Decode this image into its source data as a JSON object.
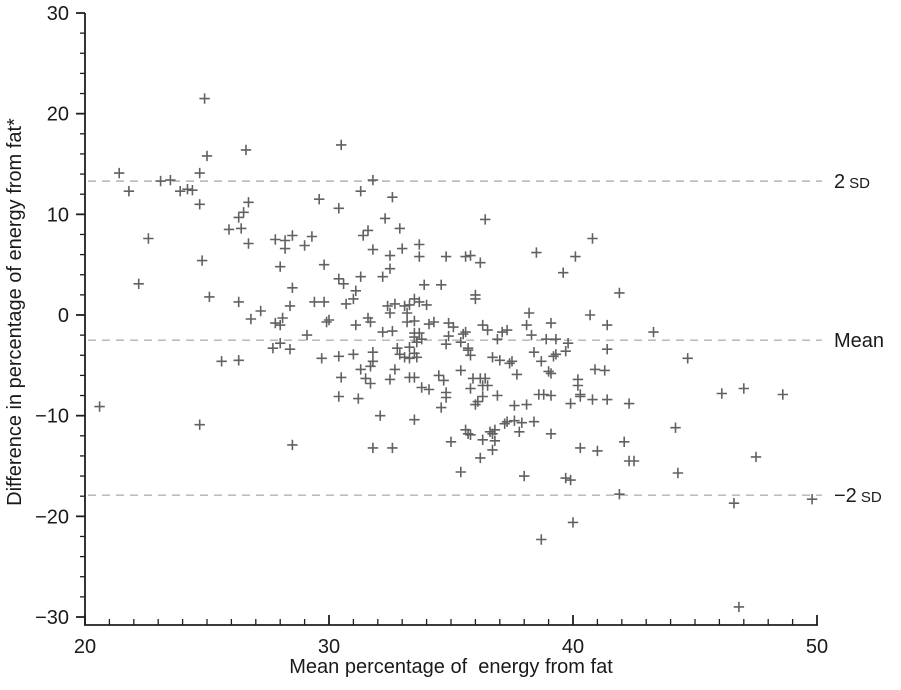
{
  "chart_data": {
    "type": "scatter",
    "marker": "plus",
    "title": "",
    "xlabel": "Mean percentage of  energy from fat",
    "ylabel": "Difference in percentage of energy from fat*",
    "xlim": [
      20,
      50
    ],
    "ylim": [
      -30,
      30
    ],
    "x_major_ticks": [
      20,
      30,
      40,
      50
    ],
    "x_tick_labels": [
      "20",
      "30",
      "40",
      "50"
    ],
    "x_minor_step": 1,
    "y_major_ticks": [
      -30,
      -20,
      -10,
      0,
      10,
      20,
      30
    ],
    "y_tick_labels": [
      "−30",
      "−20",
      "−10",
      "0",
      "10",
      "20",
      "30"
    ],
    "y_minor_step": 2,
    "grid": false,
    "legend": "none",
    "reference_lines": [
      {
        "id": "plus-2sd",
        "main": "2",
        "small": "SD",
        "value": 13.3
      },
      {
        "id": "mean",
        "main": "Mean",
        "small": "",
        "value": -2.5
      },
      {
        "id": "minus-2sd",
        "main": "−2",
        "small": "SD",
        "value": -17.9
      }
    ],
    "points": [
      [
        24.9,
        21.5
      ],
      [
        25.0,
        15.8
      ],
      [
        26.6,
        16.4
      ],
      [
        30.5,
        16.9
      ],
      [
        21.4,
        14.1
      ],
      [
        24.7,
        14.1
      ],
      [
        23.5,
        13.4
      ],
      [
        31.8,
        13.4
      ],
      [
        23.1,
        13.3
      ],
      [
        21.8,
        12.3
      ],
      [
        23.9,
        12.3
      ],
      [
        31.3,
        12.3
      ],
      [
        24.2,
        12.5
      ],
      [
        24.4,
        12.4
      ],
      [
        32.6,
        11.7
      ],
      [
        29.6,
        11.5
      ],
      [
        26.7,
        11.2
      ],
      [
        24.7,
        11.0
      ],
      [
        30.4,
        10.6
      ],
      [
        26.5,
        10.2
      ],
      [
        26.3,
        9.7
      ],
      [
        32.3,
        9.6
      ],
      [
        36.4,
        9.5
      ],
      [
        26.4,
        8.6
      ],
      [
        32.9,
        8.6
      ],
      [
        25.9,
        8.5
      ],
      [
        31.6,
        8.4
      ],
      [
        28.5,
        7.9
      ],
      [
        31.4,
        7.9
      ],
      [
        29.3,
        7.8
      ],
      [
        22.6,
        7.6
      ],
      [
        40.8,
        7.6
      ],
      [
        27.8,
        7.5
      ],
      [
        28.2,
        7.4
      ],
      [
        26.7,
        7.1
      ],
      [
        33.7,
        7.0
      ],
      [
        29.0,
        6.9
      ],
      [
        28.2,
        6.6
      ],
      [
        33.0,
        6.6
      ],
      [
        31.8,
        6.5
      ],
      [
        38.5,
        6.2
      ],
      [
        32.5,
        5.9
      ],
      [
        35.8,
        5.9
      ],
      [
        33.7,
        5.8
      ],
      [
        34.8,
        5.8
      ],
      [
        35.6,
        5.8
      ],
      [
        40.1,
        5.8
      ],
      [
        24.8,
        5.4
      ],
      [
        36.2,
        5.2
      ],
      [
        29.8,
        5.0
      ],
      [
        28.0,
        4.8
      ],
      [
        32.5,
        4.6
      ],
      [
        39.6,
        4.2
      ],
      [
        31.3,
        3.8
      ],
      [
        32.2,
        3.8
      ],
      [
        30.4,
        3.6
      ],
      [
        22.2,
        3.1
      ],
      [
        30.6,
        3.1
      ],
      [
        33.9,
        3.0
      ],
      [
        34.6,
        3.0
      ],
      [
        28.5,
        2.7
      ],
      [
        31.1,
        2.4
      ],
      [
        41.9,
        2.2
      ],
      [
        36.0,
        2.0
      ],
      [
        25.1,
        1.8
      ],
      [
        31.0,
        1.6
      ],
      [
        33.5,
        1.6
      ],
      [
        36.0,
        1.6
      ],
      [
        26.3,
        1.3
      ],
      [
        29.4,
        1.3
      ],
      [
        29.8,
        1.3
      ],
      [
        33.7,
        1.3
      ],
      [
        30.7,
        1.1
      ],
      [
        32.7,
        1.1
      ],
      [
        33.3,
        1.0
      ],
      [
        34.0,
        1.0
      ],
      [
        28.4,
        0.9
      ],
      [
        32.4,
        0.9
      ],
      [
        33.1,
        0.9
      ],
      [
        27.2,
        0.4
      ],
      [
        32.5,
        0.2
      ],
      [
        33.2,
        0.2
      ],
      [
        38.2,
        0.2
      ],
      [
        40.7,
        0.0
      ],
      [
        28.1,
        -0.3
      ],
      [
        31.6,
        -0.3
      ],
      [
        26.8,
        -0.4
      ],
      [
        30.0,
        -0.5
      ],
      [
        33.5,
        -0.6
      ],
      [
        29.9,
        -0.7
      ],
      [
        31.7,
        -0.7
      ],
      [
        33.2,
        -0.7
      ],
      [
        34.3,
        -0.7
      ],
      [
        27.8,
        -0.8
      ],
      [
        34.1,
        -0.9
      ],
      [
        34.9,
        -0.8
      ],
      [
        28.0,
        -1.0
      ],
      [
        31.1,
        -1.0
      ],
      [
        36.3,
        -1.0
      ],
      [
        38.1,
        -1.0
      ],
      [
        39.1,
        -0.8
      ],
      [
        41.4,
        -1.0
      ],
      [
        35.1,
        -1.2
      ],
      [
        36.5,
        -1.5
      ],
      [
        37.3,
        -1.5
      ],
      [
        32.6,
        -1.6
      ],
      [
        32.2,
        -1.7
      ],
      [
        33.5,
        -1.8
      ],
      [
        33.7,
        -1.8
      ],
      [
        35.6,
        -1.7
      ],
      [
        37.1,
        -1.7
      ],
      [
        43.3,
        -1.7
      ],
      [
        35.5,
        -1.9
      ],
      [
        34.9,
        -2.1
      ],
      [
        38.3,
        -2.0
      ],
      [
        29.1,
        -2.0
      ],
      [
        33.5,
        -2.2
      ],
      [
        33.8,
        -2.4
      ],
      [
        36.9,
        -2.4
      ],
      [
        38.9,
        -2.4
      ],
      [
        39.3,
        -2.4
      ],
      [
        33.6,
        -2.7
      ],
      [
        35.4,
        -2.7
      ],
      [
        28.0,
        -2.8
      ],
      [
        39.8,
        -2.8
      ],
      [
        34.8,
        -2.9
      ],
      [
        27.7,
        -3.3
      ],
      [
        32.8,
        -3.3
      ],
      [
        33.3,
        -3.2
      ],
      [
        35.7,
        -3.3
      ],
      [
        28.4,
        -3.4
      ],
      [
        41.4,
        -3.4
      ],
      [
        35.7,
        -3.5
      ],
      [
        39.7,
        -3.6
      ],
      [
        31.8,
        -3.7
      ],
      [
        38.4,
        -3.7
      ],
      [
        32.9,
        -3.9
      ],
      [
        33.5,
        -3.8
      ],
      [
        31.0,
        -3.9
      ],
      [
        39.3,
        -3.9
      ],
      [
        35.8,
        -4.0
      ],
      [
        30.4,
        -4.1
      ],
      [
        33.1,
        -4.2
      ],
      [
        33.6,
        -4.2
      ],
      [
        36.7,
        -4.2
      ],
      [
        39.2,
        -4.1
      ],
      [
        29.7,
        -4.3
      ],
      [
        33.3,
        -4.3
      ],
      [
        44.7,
        -4.3
      ],
      [
        26.3,
        -4.5
      ],
      [
        25.6,
        -4.6
      ],
      [
        31.8,
        -4.6
      ],
      [
        37.0,
        -4.5
      ],
      [
        37.5,
        -4.6
      ],
      [
        38.7,
        -4.6
      ],
      [
        37.4,
        -4.8
      ],
      [
        31.7,
        -5.1
      ],
      [
        31.3,
        -5.4
      ],
      [
        32.7,
        -5.4
      ],
      [
        40.9,
        -5.4
      ],
      [
        35.4,
        -5.5
      ],
      [
        41.3,
        -5.5
      ],
      [
        39.0,
        -5.6
      ],
      [
        39.1,
        -5.8
      ],
      [
        37.7,
        -5.9
      ],
      [
        34.5,
        -6.0
      ],
      [
        30.5,
        -6.2
      ],
      [
        33.3,
        -6.2
      ],
      [
        33.5,
        -6.2
      ],
      [
        31.5,
        -6.3
      ],
      [
        35.9,
        -6.3
      ],
      [
        36.2,
        -6.3
      ],
      [
        36.4,
        -6.3
      ],
      [
        32.5,
        -6.4
      ],
      [
        40.2,
        -6.4
      ],
      [
        34.7,
        -6.5
      ],
      [
        31.7,
        -6.8
      ],
      [
        36.3,
        -7.0
      ],
      [
        36.5,
        -7.0
      ],
      [
        40.2,
        -7.0
      ],
      [
        33.8,
        -7.2
      ],
      [
        35.8,
        -7.3
      ],
      [
        47.0,
        -7.3
      ],
      [
        34.1,
        -7.4
      ],
      [
        34.8,
        -7.7
      ],
      [
        46.1,
        -7.8
      ],
      [
        38.6,
        -7.9
      ],
      [
        38.8,
        -7.9
      ],
      [
        40.3,
        -7.9
      ],
      [
        48.6,
        -7.9
      ],
      [
        36.9,
        -8.0
      ],
      [
        39.1,
        -8.0
      ],
      [
        30.4,
        -8.1
      ],
      [
        36.3,
        -8.1
      ],
      [
        40.3,
        -8.1
      ],
      [
        34.8,
        -8.2
      ],
      [
        31.2,
        -8.3
      ],
      [
        40.8,
        -8.4
      ],
      [
        41.4,
        -8.4
      ],
      [
        36.1,
        -8.6
      ],
      [
        42.3,
        -8.8
      ],
      [
        39.9,
        -8.8
      ],
      [
        36.0,
        -8.9
      ],
      [
        37.6,
        -9.0
      ],
      [
        38.1,
        -8.9
      ],
      [
        20.6,
        -9.1
      ],
      [
        34.6,
        -9.2
      ],
      [
        32.1,
        -10.0
      ],
      [
        33.5,
        -10.4
      ],
      [
        37.2,
        -10.8
      ],
      [
        37.3,
        -10.6
      ],
      [
        37.6,
        -10.5
      ],
      [
        37.9,
        -10.7
      ],
      [
        38.4,
        -10.6
      ],
      [
        24.7,
        -10.9
      ],
      [
        35.6,
        -11.4
      ],
      [
        36.8,
        -11.4
      ],
      [
        44.2,
        -11.2
      ],
      [
        37.8,
        -11.6
      ],
      [
        36.6,
        -11.6
      ],
      [
        35.7,
        -11.8
      ],
      [
        35.8,
        -11.9
      ],
      [
        36.7,
        -11.8
      ],
      [
        39.1,
        -11.8
      ],
      [
        36.3,
        -12.4
      ],
      [
        35.0,
        -12.6
      ],
      [
        36.8,
        -12.5
      ],
      [
        42.1,
        -12.6
      ],
      [
        28.5,
        -12.9
      ],
      [
        31.8,
        -13.2
      ],
      [
        32.6,
        -13.2
      ],
      [
        40.3,
        -13.2
      ],
      [
        36.7,
        -13.4
      ],
      [
        41.0,
        -13.5
      ],
      [
        47.5,
        -14.1
      ],
      [
        36.2,
        -14.2
      ],
      [
        42.3,
        -14.5
      ],
      [
        42.5,
        -14.5
      ],
      [
        35.4,
        -15.6
      ],
      [
        44.3,
        -15.7
      ],
      [
        38.0,
        -16.0
      ],
      [
        39.7,
        -16.2
      ],
      [
        39.9,
        -16.4
      ],
      [
        41.9,
        -17.8
      ],
      [
        46.6,
        -18.7
      ],
      [
        49.8,
        -18.3
      ],
      [
        40.0,
        -20.6
      ],
      [
        38.7,
        -22.3
      ],
      [
        46.8,
        -29.0
      ]
    ],
    "colors": {
      "marker": "#616161",
      "axis": "#1f1f1f",
      "dashed_line": "#b2b2b2",
      "text": "#1a1a1a"
    }
  }
}
